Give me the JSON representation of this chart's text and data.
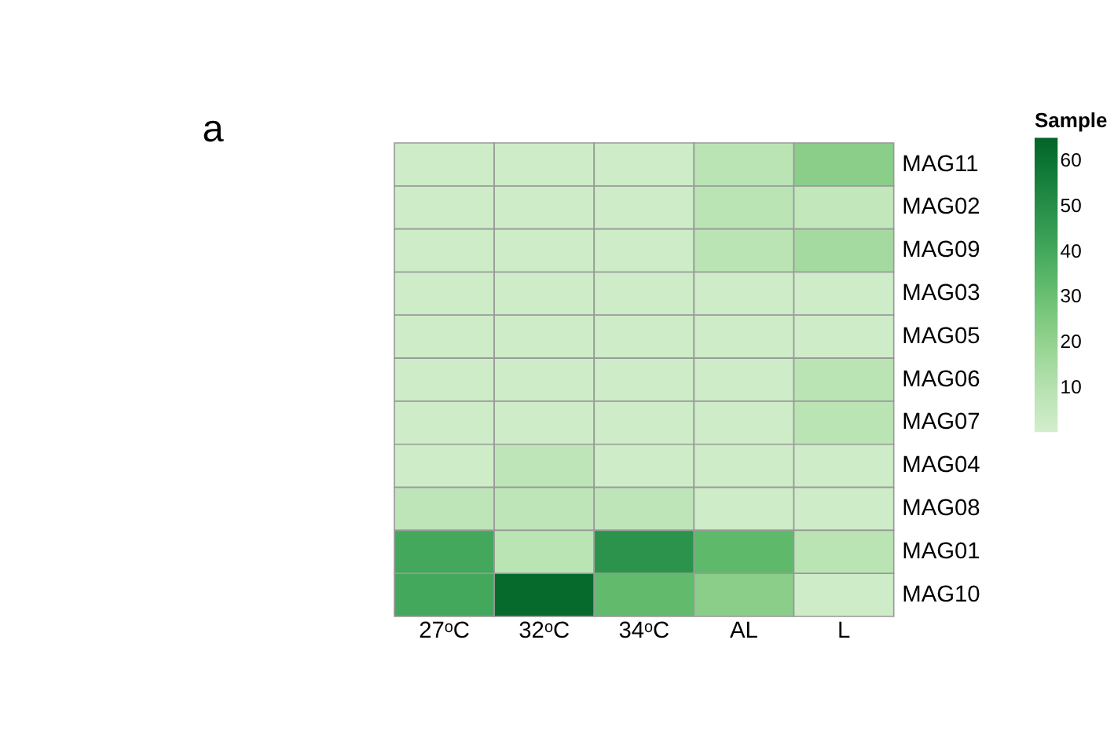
{
  "chart_data": {
    "type": "heatmap",
    "categories": [
      "27ᵒC",
      "32ᵒC",
      "34ᵒC",
      "AL",
      "L"
    ],
    "y_categories": [
      "MAG11",
      "MAG02",
      "MAG09",
      "MAG03",
      "MAG05",
      "MAG06",
      "MAG07",
      "MAG04",
      "MAG08",
      "MAG01",
      "MAG10"
    ],
    "cells": [
      [
        2,
        2,
        2,
        8,
        22
      ],
      [
        2,
        2,
        2,
        8,
        6
      ],
      [
        2,
        2,
        2,
        8,
        15
      ],
      [
        2,
        2,
        2,
        2,
        2
      ],
      [
        2,
        2,
        2,
        2,
        2
      ],
      [
        2,
        2,
        2,
        2,
        8
      ],
      [
        2,
        2,
        2,
        2,
        8
      ],
      [
        2,
        7,
        2,
        2,
        2
      ],
      [
        7,
        7,
        7,
        2,
        2
      ],
      [
        40,
        8,
        48,
        33,
        8
      ],
      [
        40,
        63,
        32,
        22,
        2
      ]
    ],
    "clim": [
      0,
      65
    ],
    "cticks": [
      10,
      20,
      30,
      40,
      50,
      60
    ],
    "clabel": "Sample",
    "annotations": [
      "a"
    ]
  }
}
